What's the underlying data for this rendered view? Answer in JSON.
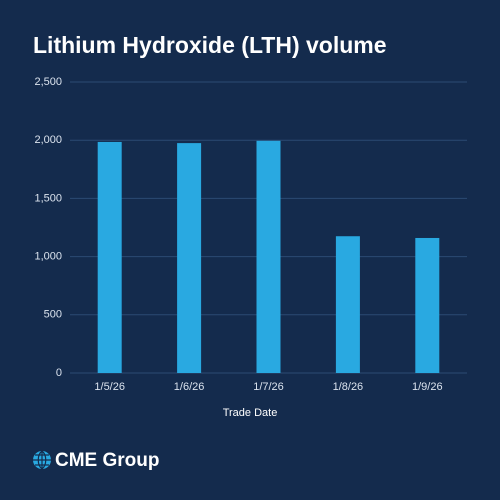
{
  "chart_data": {
    "type": "bar",
    "title": "Lithium Hydroxide (LTH) volume",
    "categories": [
      "1/5/26",
      "1/6/26",
      "1/7/26",
      "1/8/26",
      "1/9/26"
    ],
    "values": [
      1985,
      1975,
      1995,
      1175,
      1160
    ],
    "color": "#29a9e1",
    "xlabel": "Trade Date",
    "ylim": [
      0,
      2500
    ],
    "yticks": [
      0,
      500,
      {
        "value": 1000,
        "label": "1,000"
      },
      {
        "value": 1500,
        "label": "1,500"
      },
      {
        "value": 2000,
        "label": "2,000"
      },
      {
        "value": 2500,
        "label": "2,500"
      }
    ],
    "grid": true,
    "logo": "CME Group"
  }
}
